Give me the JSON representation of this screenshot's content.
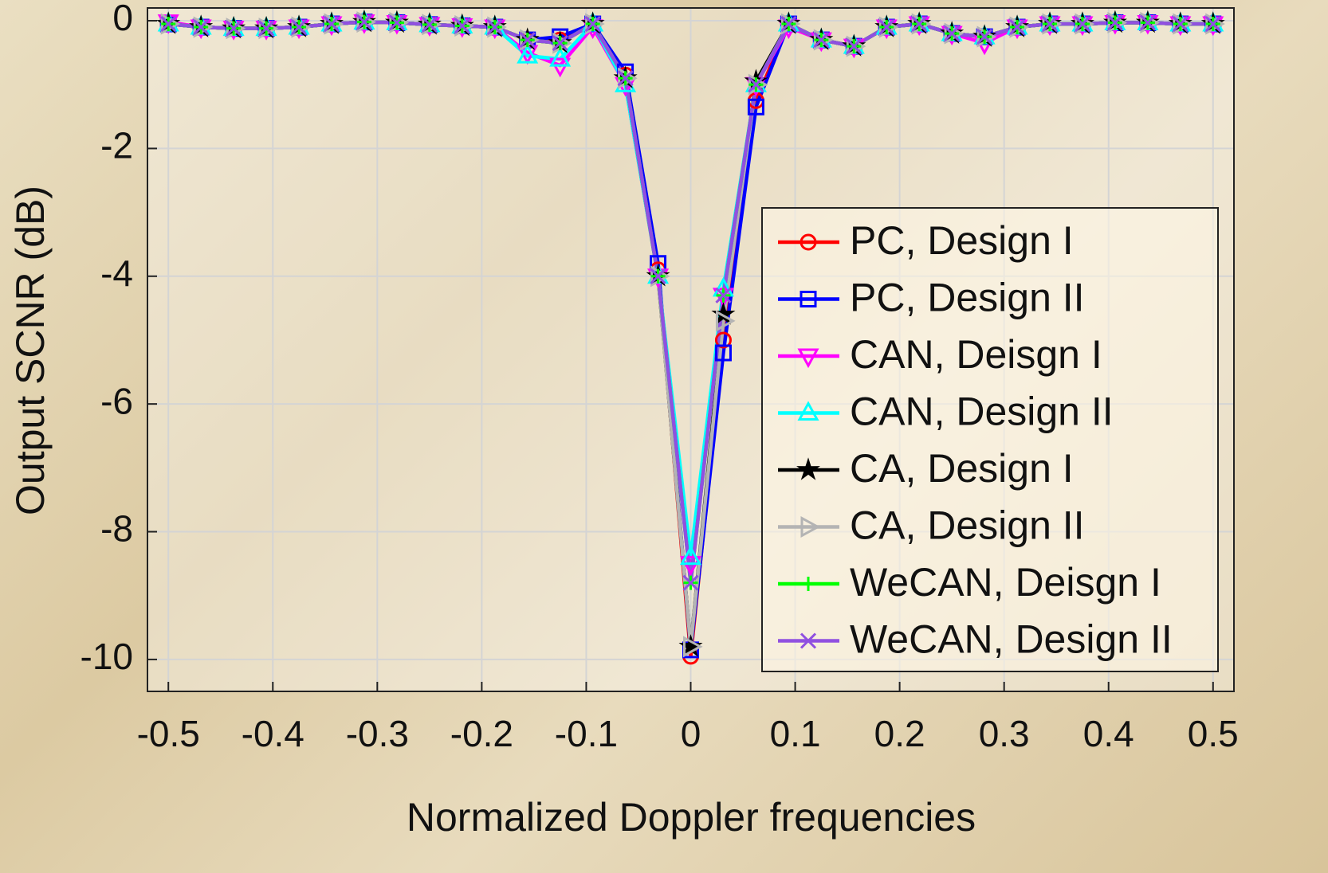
{
  "chart_data": {
    "type": "line",
    "xlabel": "Normalized Doppler frequencies",
    "ylabel": "Output SCNR (dB)",
    "x": [
      -0.5,
      -0.46875,
      -0.4375,
      -0.40625,
      -0.375,
      -0.34375,
      -0.3125,
      -0.28125,
      -0.25,
      -0.21875,
      -0.1875,
      -0.15625,
      -0.125,
      -0.09375,
      -0.0625,
      -0.03125,
      0,
      0.03125,
      0.0625,
      0.09375,
      0.125,
      0.15625,
      0.1875,
      0.21875,
      0.25,
      0.28125,
      0.3125,
      0.34375,
      0.375,
      0.40625,
      0.4375,
      0.46875,
      0.5
    ],
    "series": [
      {
        "name": "PC, Design I",
        "color": "#ff0000",
        "marker": "circle",
        "values": [
          -0.05,
          -0.1,
          -0.12,
          -0.12,
          -0.1,
          -0.05,
          -0.02,
          -0.03,
          -0.06,
          -0.08,
          -0.1,
          -0.3,
          -0.3,
          -0.05,
          -0.85,
          -3.9,
          -9.95,
          -5.0,
          -1.25,
          -0.05,
          -0.3,
          -0.4,
          -0.1,
          -0.05,
          -0.2,
          -0.25,
          -0.1,
          -0.05,
          -0.05,
          -0.03,
          -0.03,
          -0.05,
          -0.05
        ]
      },
      {
        "name": "PC, Design II",
        "color": "#0000ff",
        "marker": "square",
        "values": [
          -0.05,
          -0.1,
          -0.12,
          -0.12,
          -0.1,
          -0.05,
          -0.02,
          -0.03,
          -0.06,
          -0.08,
          -0.1,
          -0.3,
          -0.25,
          -0.05,
          -0.8,
          -3.8,
          -9.85,
          -5.2,
          -1.35,
          -0.05,
          -0.3,
          -0.4,
          -0.1,
          -0.05,
          -0.2,
          -0.25,
          -0.1,
          -0.05,
          -0.05,
          -0.03,
          -0.03,
          -0.05,
          -0.05
        ]
      },
      {
        "name": "CAN, Deisgn I",
        "color": "#ff00ff",
        "marker": "triangle-down",
        "values": [
          -0.02,
          -0.1,
          -0.12,
          -0.12,
          -0.1,
          -0.05,
          -0.02,
          -0.03,
          -0.06,
          -0.08,
          -0.1,
          -0.5,
          -0.7,
          -0.1,
          -1.0,
          -4.0,
          -8.5,
          -4.3,
          -1.0,
          -0.1,
          -0.3,
          -0.4,
          -0.1,
          -0.05,
          -0.2,
          -0.35,
          -0.1,
          -0.05,
          -0.05,
          -0.03,
          -0.03,
          -0.05,
          -0.05
        ]
      },
      {
        "name": "CAN, Design II",
        "color": "#00ffff",
        "marker": "triangle-up",
        "values": [
          -0.05,
          -0.1,
          -0.12,
          -0.12,
          -0.1,
          -0.05,
          -0.02,
          -0.03,
          -0.06,
          -0.08,
          -0.1,
          -0.55,
          -0.6,
          -0.05,
          -1.0,
          -4.0,
          -8.4,
          -4.2,
          -1.0,
          -0.05,
          -0.3,
          -0.4,
          -0.1,
          -0.05,
          -0.2,
          -0.25,
          -0.1,
          -0.05,
          -0.05,
          -0.03,
          -0.03,
          -0.05,
          -0.05
        ]
      },
      {
        "name": "CA, Design I",
        "color": "#000000",
        "marker": "star",
        "values": [
          -0.05,
          -0.1,
          -0.12,
          -0.12,
          -0.1,
          -0.05,
          -0.02,
          -0.03,
          -0.06,
          -0.08,
          -0.1,
          -0.3,
          -0.35,
          -0.05,
          -0.9,
          -4.0,
          -9.8,
          -4.6,
          -0.95,
          -0.05,
          -0.3,
          -0.4,
          -0.1,
          -0.05,
          -0.2,
          -0.25,
          -0.1,
          -0.05,
          -0.05,
          -0.03,
          -0.03,
          -0.05,
          -0.05
        ]
      },
      {
        "name": "CA, Design II",
        "color": "#b4b4b4",
        "marker": "triangle-right",
        "values": [
          -0.05,
          -0.1,
          -0.12,
          -0.12,
          -0.1,
          -0.05,
          -0.02,
          -0.03,
          -0.06,
          -0.08,
          -0.1,
          -0.3,
          -0.35,
          -0.05,
          -0.9,
          -4.0,
          -9.8,
          -4.7,
          -1.0,
          -0.05,
          -0.3,
          -0.4,
          -0.1,
          -0.05,
          -0.2,
          -0.25,
          -0.1,
          -0.05,
          -0.05,
          -0.03,
          -0.03,
          -0.05,
          -0.05
        ]
      },
      {
        "name": "WeCAN, Deisgn I",
        "color": "#00ff00",
        "marker": "plus",
        "values": [
          -0.05,
          -0.1,
          -0.12,
          -0.12,
          -0.1,
          -0.05,
          -0.02,
          -0.03,
          -0.06,
          -0.08,
          -0.1,
          -0.3,
          -0.35,
          -0.05,
          -0.9,
          -4.0,
          -8.8,
          -4.3,
          -1.0,
          -0.05,
          -0.3,
          -0.4,
          -0.1,
          -0.05,
          -0.2,
          -0.25,
          -0.1,
          -0.05,
          -0.05,
          -0.03,
          -0.03,
          -0.05,
          -0.05
        ]
      },
      {
        "name": "WeCAN, Design II",
        "color": "#9050e0",
        "marker": "x",
        "values": [
          -0.05,
          -0.1,
          -0.12,
          -0.12,
          -0.1,
          -0.05,
          -0.02,
          -0.03,
          -0.06,
          -0.08,
          -0.1,
          -0.3,
          -0.35,
          -0.05,
          -0.9,
          -4.0,
          -8.8,
          -4.3,
          -1.0,
          -0.05,
          -0.3,
          -0.4,
          -0.1,
          -0.05,
          -0.2,
          -0.25,
          -0.1,
          -0.05,
          -0.05,
          -0.03,
          -0.03,
          -0.05,
          -0.05
        ]
      }
    ],
    "xlim": [
      -0.52,
      0.52
    ],
    "xticks": [
      -0.5,
      -0.4,
      -0.3,
      -0.2,
      -0.1,
      0,
      0.1,
      0.2,
      0.3,
      0.4,
      0.5
    ],
    "ylim": [
      -10.5,
      0.2
    ],
    "yticks": [
      -10,
      -8,
      -6,
      -4,
      -2,
      0
    ],
    "grid": true,
    "legend": "lower right"
  }
}
